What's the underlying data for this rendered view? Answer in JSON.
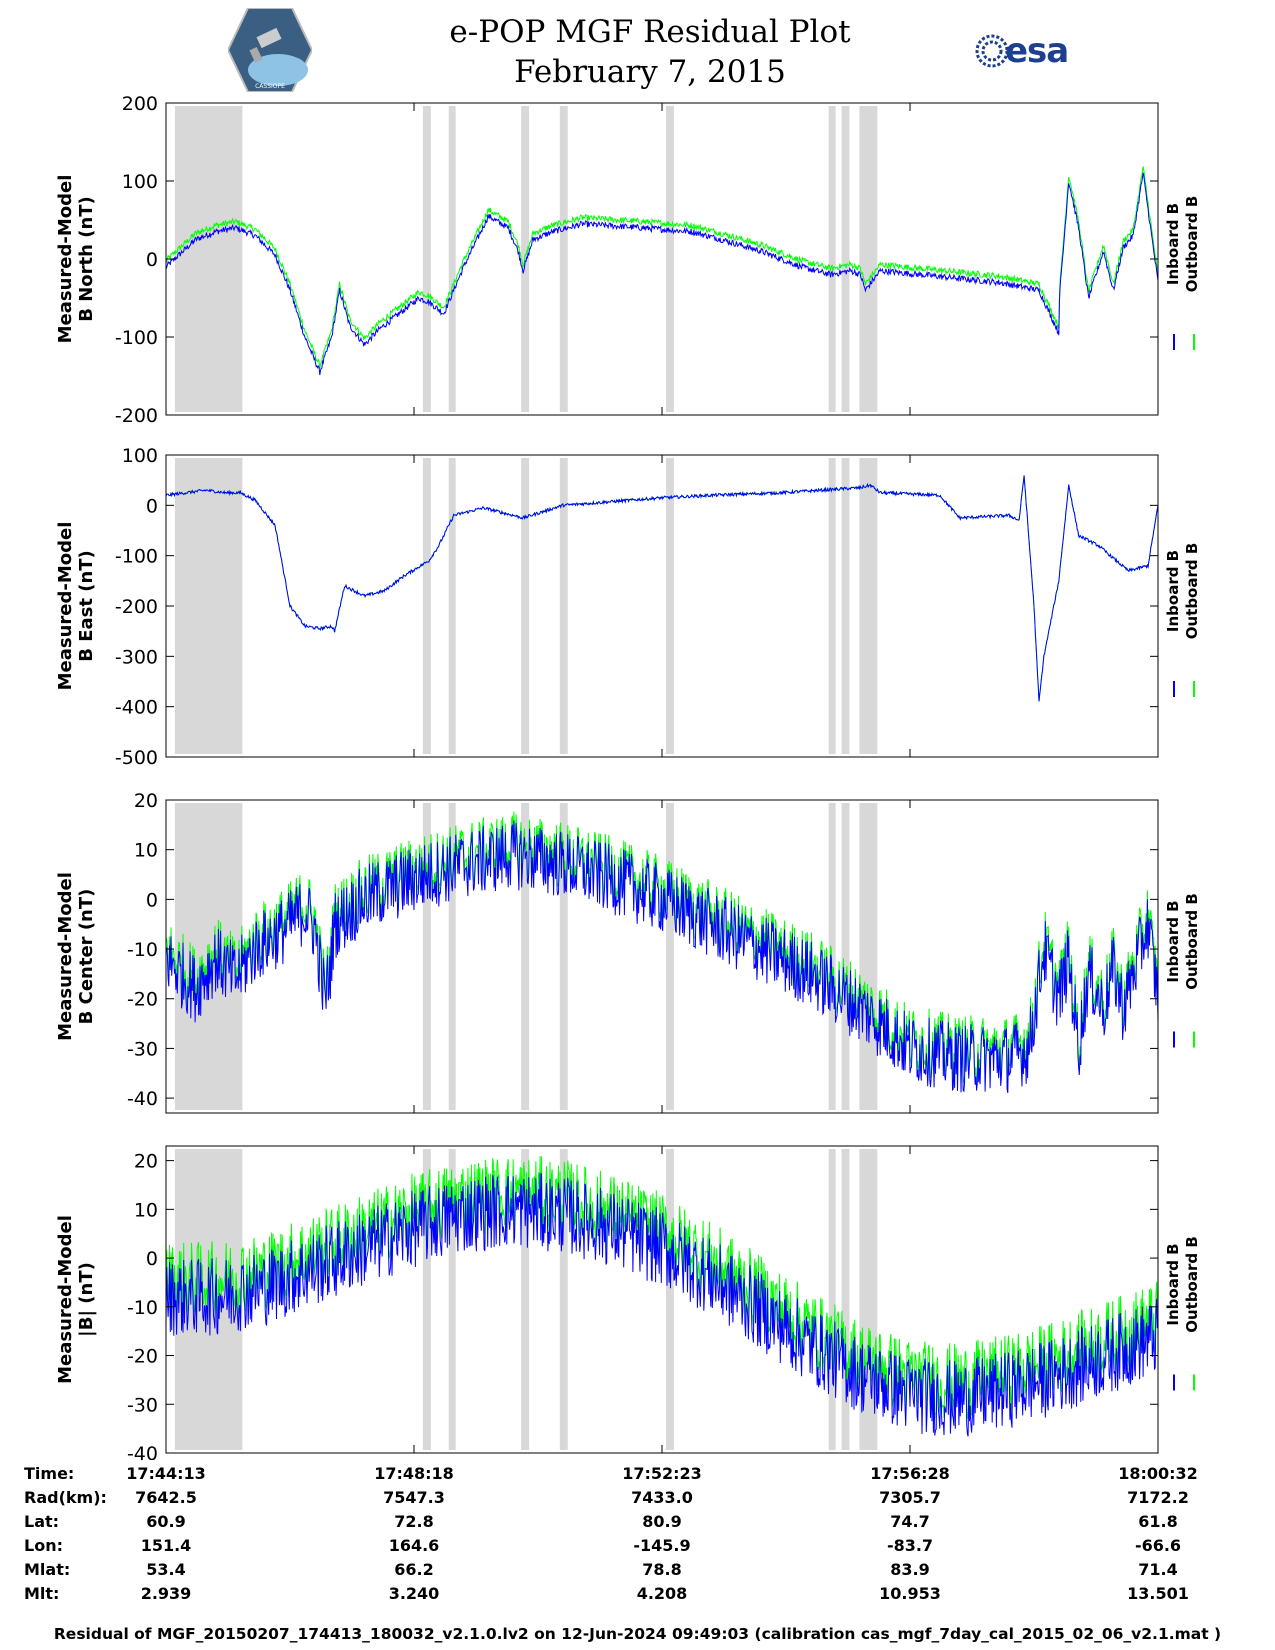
{
  "header": {
    "title_line1": "e-POP MGF Residual Plot",
    "title_line2": "February 7, 2015",
    "right_logo_text": "esa",
    "left_logo_text": "CASSIOPE"
  },
  "colors": {
    "inboard": "#0000ff",
    "outboard": "#00ff00",
    "gap": "#d8d8d8"
  },
  "gap_intervals_fraction": [
    [
      0.009,
      0.077
    ],
    [
      0.259,
      0.267
    ],
    [
      0.285,
      0.292
    ],
    [
      0.358,
      0.366
    ],
    [
      0.397,
      0.405
    ],
    [
      0.504,
      0.512
    ],
    [
      0.668,
      0.675
    ],
    [
      0.681,
      0.689
    ],
    [
      0.699,
      0.717
    ]
  ],
  "chart_data": [
    {
      "type": "line",
      "ylabel_line1": "Measured-Model",
      "ylabel_line2": "B North (nT)",
      "ylim": [
        -200,
        200
      ],
      "yticks": [
        -200,
        -100,
        0,
        100,
        200
      ],
      "legend": [
        "Inboard B",
        "Outboard B"
      ],
      "series": [
        {
          "name": "Inboard B",
          "noise": 4,
          "x": [
            0,
            0.03,
            0.05,
            0.07,
            0.09,
            0.11,
            0.125,
            0.14,
            0.155,
            0.167,
            0.175,
            0.185,
            0.2,
            0.215,
            0.23,
            0.245,
            0.255,
            0.265,
            0.28,
            0.3,
            0.325,
            0.345,
            0.355,
            0.36,
            0.37,
            0.39,
            0.42,
            0.48,
            0.53,
            0.56,
            0.6,
            0.64,
            0.67,
            0.69,
            0.7,
            0.705,
            0.72,
            0.76,
            0.8,
            0.84,
            0.86,
            0.88,
            0.9,
            0.9,
            0.91,
            0.92,
            0.93,
            0.945,
            0.955,
            0.965,
            0.975,
            0.985,
            1.0
          ],
          "y": [
            -10,
            25,
            35,
            40,
            30,
            5,
            -40,
            -100,
            -145,
            -100,
            -40,
            -85,
            -110,
            -90,
            -75,
            -60,
            -50,
            -55,
            -70,
            -10,
            55,
            40,
            10,
            -15,
            25,
            35,
            45,
            40,
            35,
            25,
            10,
            -10,
            -20,
            -15,
            -20,
            -40,
            -15,
            -20,
            -25,
            -30,
            -35,
            -40,
            -95,
            -60,
            100,
            40,
            -50,
            10,
            -40,
            15,
            30,
            110,
            -30
          ],
          "offset_outboard": 8
        }
      ]
    },
    {
      "type": "line",
      "ylabel_line1": "Measured-Model",
      "ylabel_line2": "B East (nT)",
      "ylim": [
        -500,
        100
      ],
      "yticks": [
        -500,
        -400,
        -300,
        -200,
        -100,
        0,
        100
      ],
      "legend": [
        "Inboard B",
        "Outboard B"
      ],
      "series": [
        {
          "name": "Inboard B",
          "noise": 3,
          "x": [
            0,
            0.02,
            0.04,
            0.06,
            0.075,
            0.09,
            0.11,
            0.125,
            0.14,
            0.155,
            0.167,
            0.17,
            0.18,
            0.2,
            0.22,
            0.24,
            0.265,
            0.275,
            0.29,
            0.32,
            0.34,
            0.36,
            0.4,
            0.5,
            0.55,
            0.62,
            0.66,
            0.7,
            0.71,
            0.72,
            0.78,
            0.8,
            0.85,
            0.86,
            0.865,
            0.875,
            0.88,
            0.885,
            0.9,
            0.91,
            0.92,
            0.94,
            0.97,
            0.99,
            1.0
          ],
          "y": [
            20,
            25,
            30,
            25,
            25,
            10,
            -40,
            -200,
            -240,
            -245,
            -240,
            -250,
            -160,
            -180,
            -170,
            -140,
            -110,
            -80,
            -20,
            -5,
            -15,
            -25,
            0,
            15,
            20,
            25,
            30,
            35,
            40,
            25,
            20,
            -25,
            -20,
            -30,
            60,
            -200,
            -390,
            -300,
            -150,
            40,
            -60,
            -80,
            -130,
            -120,
            0
          ],
          "offset_outboard": 0
        }
      ]
    },
    {
      "type": "line",
      "ylabel_line1": "Measured-Model",
      "ylabel_line2": "B Center (nT)",
      "ylim": [
        -43,
        20
      ],
      "yticks": [
        -40,
        -30,
        -20,
        -10,
        0,
        10,
        20
      ],
      "legend": [
        "Inboard B",
        "Outboard B"
      ],
      "series": [
        {
          "name": "Inboard B",
          "noise": 7,
          "x": [
            0,
            0.03,
            0.05,
            0.07,
            0.09,
            0.12,
            0.14,
            0.15,
            0.16,
            0.165,
            0.17,
            0.2,
            0.25,
            0.3,
            0.35,
            0.4,
            0.45,
            0.5,
            0.55,
            0.6,
            0.65,
            0.7,
            0.75,
            0.8,
            0.85,
            0.87,
            0.885,
            0.9,
            0.91,
            0.92,
            0.93,
            0.945,
            0.955,
            0.965,
            0.975,
            0.985,
            0.99,
            1.0
          ],
          "y": [
            -12,
            -18,
            -12,
            -16,
            -10,
            -6,
            -2,
            -6,
            -20,
            -15,
            -5,
            0,
            4,
            7,
            9,
            7,
            4,
            0,
            -5,
            -10,
            -15,
            -22,
            -30,
            -32,
            -32,
            -30,
            -10,
            -20,
            -12,
            -30,
            -15,
            -22,
            -14,
            -22,
            -15,
            -8,
            -5,
            -20
          ],
          "offset_outboard": 1.8
        }
      ]
    },
    {
      "type": "line",
      "ylabel_line1": "Measured-Model",
      "ylabel_line2": "|B| (nT)",
      "ylim": [
        -40,
        23
      ],
      "yticks": [
        -40,
        -30,
        -20,
        -10,
        0,
        10,
        20
      ],
      "legend": [
        "Inboard B",
        "Outboard B"
      ],
      "series": [
        {
          "name": "Inboard B",
          "noise": 8,
          "x": [
            0,
            0.05,
            0.1,
            0.15,
            0.2,
            0.25,
            0.3,
            0.35,
            0.4,
            0.45,
            0.5,
            0.55,
            0.6,
            0.65,
            0.7,
            0.75,
            0.8,
            0.85,
            0.9,
            0.95,
            1.0
          ],
          "y": [
            -8,
            -8,
            -6,
            -2,
            2,
            6,
            9,
            10,
            9,
            6,
            2,
            -4,
            -11,
            -18,
            -24,
            -28,
            -29,
            -27,
            -24,
            -20,
            -16
          ],
          "offset_outboard": 3.5
        }
      ]
    }
  ],
  "orbit_table": {
    "labels": [
      "Time:",
      "Rad(km):",
      "Lat:",
      "Lon:",
      "Mlat:",
      "Mlt:"
    ],
    "columns": [
      [
        "17:44:13",
        "7642.5",
        "60.9",
        "151.4",
        "53.4",
        "2.939"
      ],
      [
        "17:48:18",
        "7547.3",
        "72.8",
        "164.6",
        "66.2",
        "3.240"
      ],
      [
        "17:52:23",
        "7433.0",
        "80.9",
        "-145.9",
        "78.8",
        "4.208"
      ],
      [
        "17:56:28",
        "7305.7",
        "74.7",
        "-83.7",
        "83.9",
        "10.953"
      ],
      [
        "18:00:32",
        "7172.2",
        "61.8",
        "-66.6",
        "71.4",
        "13.501"
      ]
    ]
  },
  "footer": "Residual of MGF_20150207_174413_180032_v2.1.0.lv2 on 12-Jun-2024 09:49:03 (calibration cas_mgf_7day_cal_2015_02_06_v2.1.mat )"
}
